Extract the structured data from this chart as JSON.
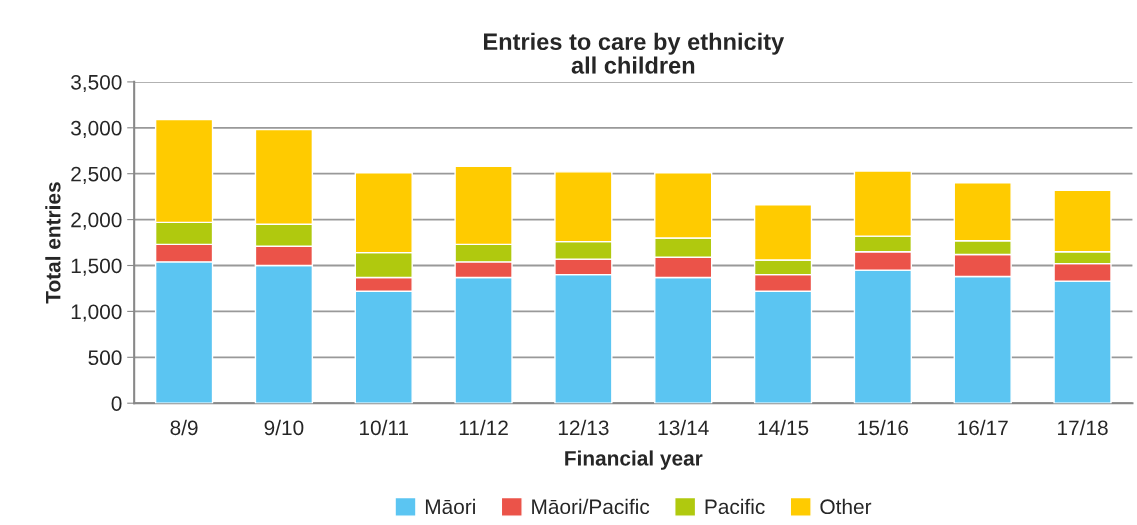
{
  "chart_data": {
    "type": "bar",
    "title": "Entries to care by ethnicity\nall children",
    "xlabel": "Financial year",
    "ylabel": "Total entries",
    "categories": [
      "8/9",
      "9/10",
      "10/11",
      "11/12",
      "12/13",
      "13/14",
      "14/15",
      "15/16",
      "16/17",
      "17/18"
    ],
    "series": [
      {
        "name": "Māori",
        "color": "#5bc5f2",
        "values": [
          1540,
          1500,
          1220,
          1370,
          1400,
          1370,
          1220,
          1450,
          1380,
          1330
        ]
      },
      {
        "name": "Māori/Pacific",
        "color": "#eb5349",
        "values": [
          190,
          210,
          150,
          170,
          170,
          220,
          180,
          200,
          240,
          190
        ]
      },
      {
        "name": "Pacific",
        "color": "#b0c90e",
        "values": [
          240,
          240,
          270,
          190,
          190,
          210,
          160,
          170,
          150,
          130
        ]
      },
      {
        "name": "Other",
        "color": "#ffcb00",
        "values": [
          1120,
          1030,
          870,
          850,
          760,
          710,
          600,
          710,
          630,
          670
        ]
      }
    ],
    "stacked": true,
    "ylim": [
      0,
      3500
    ],
    "yticks": [
      {
        "value": 0,
        "label": "0"
      },
      {
        "value": 500,
        "label": "500"
      },
      {
        "value": 1000,
        "label": "1,000"
      },
      {
        "value": 1500,
        "label": "1,500"
      },
      {
        "value": 2000,
        "label": "2,000"
      },
      {
        "value": 2500,
        "label": "2,500"
      },
      {
        "value": 3000,
        "label": "3,000"
      },
      {
        "value": 3500,
        "label": "3,500"
      }
    ],
    "grid": "y",
    "legend": "bottom"
  }
}
